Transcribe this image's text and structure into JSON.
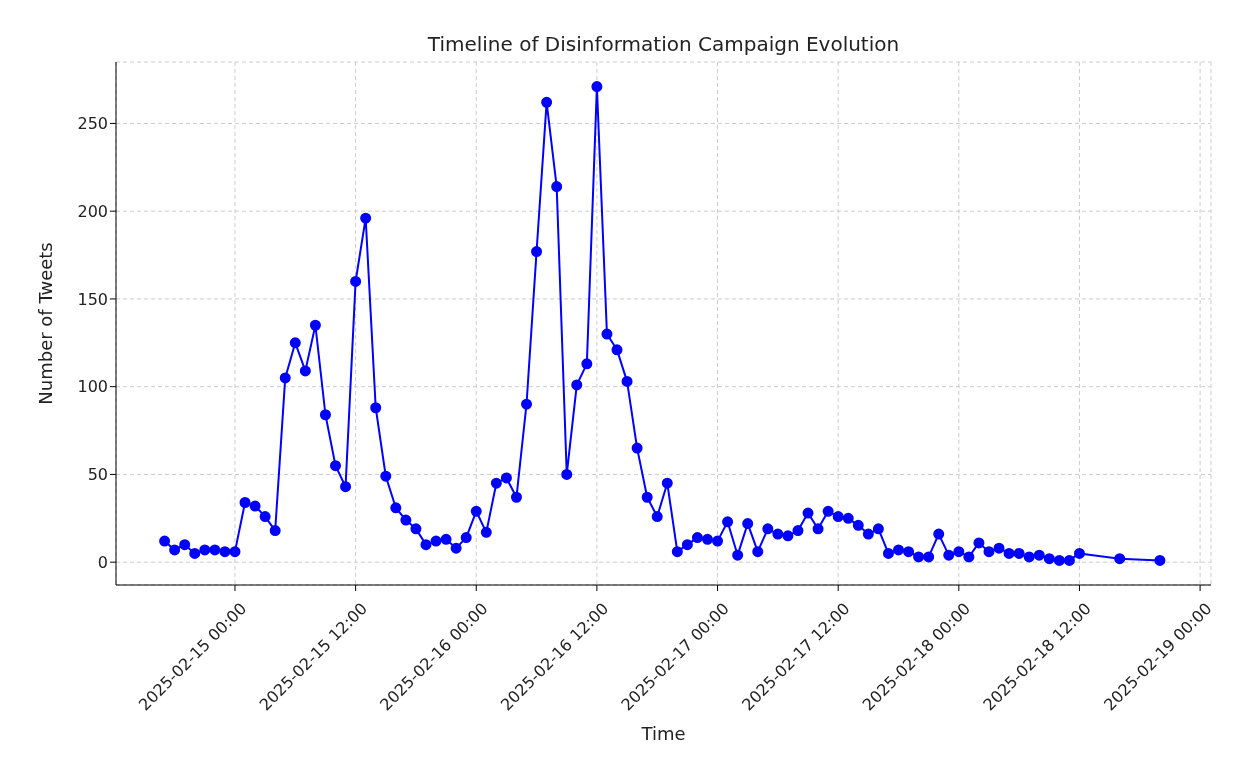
{
  "chart_data": {
    "type": "line",
    "title": "Timeline of Disinformation Campaign Evolution",
    "xlabel": "Time",
    "ylabel": "Number of Tweets",
    "x": [
      "2025-02-14T17:00",
      "2025-02-14T18:00",
      "2025-02-14T19:00",
      "2025-02-14T20:00",
      "2025-02-14T21:00",
      "2025-02-14T22:00",
      "2025-02-14T23:00",
      "2025-02-15T00:00",
      "2025-02-15T01:00",
      "2025-02-15T02:00",
      "2025-02-15T03:00",
      "2025-02-15T04:00",
      "2025-02-15T05:00",
      "2025-02-15T06:00",
      "2025-02-15T07:00",
      "2025-02-15T08:00",
      "2025-02-15T09:00",
      "2025-02-15T10:00",
      "2025-02-15T11:00",
      "2025-02-15T12:00",
      "2025-02-15T13:00",
      "2025-02-15T14:00",
      "2025-02-15T15:00",
      "2025-02-15T16:00",
      "2025-02-15T17:00",
      "2025-02-15T18:00",
      "2025-02-15T19:00",
      "2025-02-15T20:00",
      "2025-02-15T21:00",
      "2025-02-15T22:00",
      "2025-02-15T23:00",
      "2025-02-16T00:00",
      "2025-02-16T01:00",
      "2025-02-16T02:00",
      "2025-02-16T03:00",
      "2025-02-16T04:00",
      "2025-02-16T05:00",
      "2025-02-16T06:00",
      "2025-02-16T07:00",
      "2025-02-16T08:00",
      "2025-02-16T09:00",
      "2025-02-16T10:00",
      "2025-02-16T11:00",
      "2025-02-16T12:00",
      "2025-02-16T13:00",
      "2025-02-16T14:00",
      "2025-02-16T15:00",
      "2025-02-16T16:00",
      "2025-02-16T17:00",
      "2025-02-16T18:00",
      "2025-02-16T19:00",
      "2025-02-16T20:00",
      "2025-02-16T21:00",
      "2025-02-16T22:00",
      "2025-02-16T23:00",
      "2025-02-17T00:00",
      "2025-02-17T01:00",
      "2025-02-17T02:00",
      "2025-02-17T03:00",
      "2025-02-17T04:00",
      "2025-02-17T05:00",
      "2025-02-17T06:00",
      "2025-02-17T07:00",
      "2025-02-17T08:00",
      "2025-02-17T09:00",
      "2025-02-17T10:00",
      "2025-02-17T11:00",
      "2025-02-17T12:00",
      "2025-02-17T13:00",
      "2025-02-17T14:00",
      "2025-02-17T15:00",
      "2025-02-17T16:00",
      "2025-02-17T17:00",
      "2025-02-17T18:00",
      "2025-02-17T19:00",
      "2025-02-17T20:00",
      "2025-02-17T21:00",
      "2025-02-17T22:00",
      "2025-02-17T23:00",
      "2025-02-18T00:00",
      "2025-02-18T01:00",
      "2025-02-18T02:00",
      "2025-02-18T03:00",
      "2025-02-18T04:00",
      "2025-02-18T05:00",
      "2025-02-18T06:00",
      "2025-02-18T07:00",
      "2025-02-18T08:00",
      "2025-02-18T09:00",
      "2025-02-18T10:00",
      "2025-02-18T11:00",
      "2025-02-18T12:00",
      "2025-02-18T16:00",
      "2025-02-18T20:00"
    ],
    "series": [
      {
        "color": "#0000ff",
        "values": [
          12,
          7,
          10,
          5,
          7,
          7,
          6,
          6,
          34,
          32,
          26,
          18,
          105,
          125,
          109,
          135,
          84,
          55,
          43,
          160,
          196,
          88,
          49,
          31,
          24,
          19,
          10,
          12,
          13,
          8,
          14,
          29,
          17,
          45,
          48,
          37,
          90,
          177,
          262,
          214,
          50,
          101,
          113,
          271,
          130,
          121,
          103,
          65,
          37,
          26,
          45,
          6,
          10,
          14,
          13,
          12,
          23,
          4,
          22,
          6,
          19,
          16,
          15,
          18,
          28,
          19,
          29,
          26,
          25,
          21,
          16,
          19,
          5,
          7,
          6,
          3,
          3,
          16,
          4,
          6,
          3,
          11,
          6,
          8,
          5,
          5,
          3,
          4,
          2,
          1,
          1,
          5,
          2,
          1
        ]
      }
    ],
    "xlim": [
      "2025-02-14T12:10",
      "2025-02-19T01:05"
    ],
    "xticks": [
      {
        "value": "2025-02-15T00:00",
        "label": "2025-02-15 00:00"
      },
      {
        "value": "2025-02-15T12:00",
        "label": "2025-02-15 12:00"
      },
      {
        "value": "2025-02-16T00:00",
        "label": "2025-02-16 00:00"
      },
      {
        "value": "2025-02-16T12:00",
        "label": "2025-02-16 12:00"
      },
      {
        "value": "2025-02-17T00:00",
        "label": "2025-02-17 00:00"
      },
      {
        "value": "2025-02-17T12:00",
        "label": "2025-02-17 12:00"
      },
      {
        "value": "2025-02-18T00:00",
        "label": "2025-02-18 00:00"
      },
      {
        "value": "2025-02-18T12:00",
        "label": "2025-02-18 12:00"
      },
      {
        "value": "2025-02-19T00:00",
        "label": "2025-02-19 00:00"
      }
    ],
    "ylim": [
      -13,
      285
    ],
    "yticks": [
      0,
      50,
      100,
      150,
      200,
      250
    ],
    "grid": true,
    "marker": "circle",
    "line_style": "solid"
  }
}
